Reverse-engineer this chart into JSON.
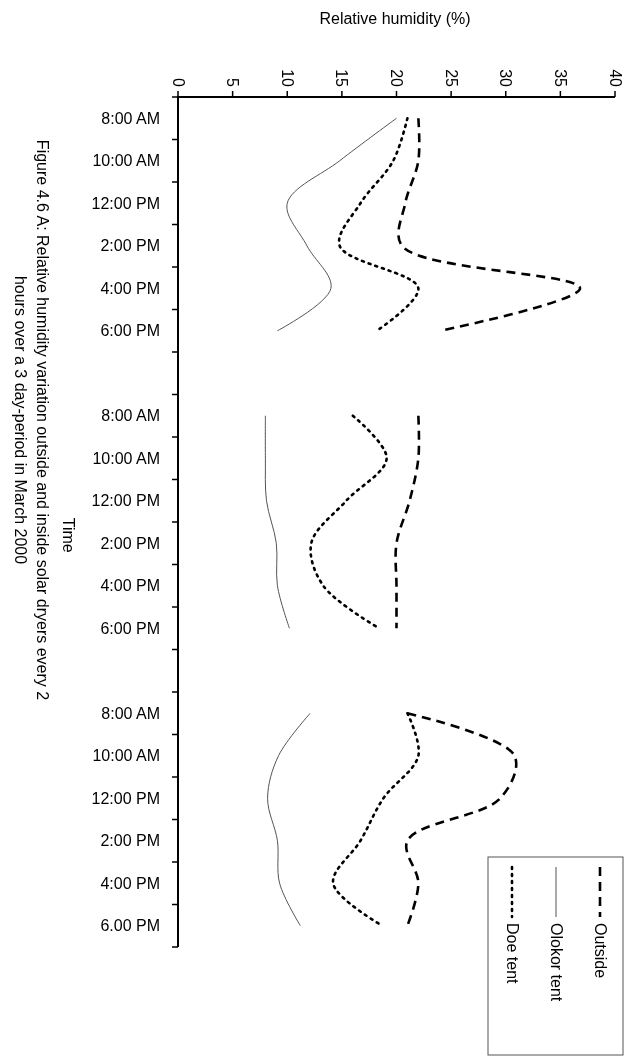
{
  "chart_data": {
    "type": "line",
    "title": "Figure 4.6 A: Relative humidity variation outside and inside solar dryers every 2 hours over a 3 day-period in March 2000",
    "orientation": "horizontal",
    "ylabel": "Time",
    "xlabel": "Relative humidity (%)",
    "categories": [
      "8:00 AM",
      "10:00 AM",
      "12:00 PM",
      "2:00 PM",
      "4:00 PM",
      "6:00 PM",
      null,
      "8:00 AM",
      "10:00 AM",
      "12:00 PM",
      "2:00 PM",
      "4:00 PM",
      "6:00 PM",
      null,
      "8:00 AM",
      "10:00 AM",
      "12:00 PM",
      "2:00 PM",
      "4:00 PM",
      "6.00 PM"
    ],
    "series": [
      {
        "name": "Outside",
        "color": "#000000",
        "line_style": "dashed",
        "values": [
          22,
          22,
          20.8,
          20.5,
          36.8,
          24,
          null,
          22,
          22,
          21.2,
          20,
          20,
          20,
          null,
          21,
          30.8,
          29.5,
          21,
          22,
          21
        ]
      },
      {
        "name": "Olokor tent",
        "color": "#555555",
        "line_style": "solid",
        "values": [
          20,
          14.8,
          10,
          11.8,
          14,
          9.1,
          null,
          8,
          8,
          8.1,
          9,
          9.1,
          10.2,
          null,
          12.1,
          9.2,
          8.2,
          9.1,
          9.3,
          11.2
        ]
      },
      {
        "name": "Doe tent",
        "color": "#000000",
        "line_style": "dotted",
        "values": [
          21,
          19.7,
          16.7,
          14.8,
          22,
          18.2,
          null,
          16,
          19.1,
          15.4,
          12.2,
          13.3,
          18.4,
          null,
          21,
          22,
          18.8,
          16.7,
          14.2,
          18.7
        ]
      }
    ],
    "xlim": [
      0,
      40
    ],
    "xticks": [
      0,
      5,
      10,
      15,
      20,
      25,
      30,
      35,
      40
    ],
    "legend": "bottom right"
  }
}
